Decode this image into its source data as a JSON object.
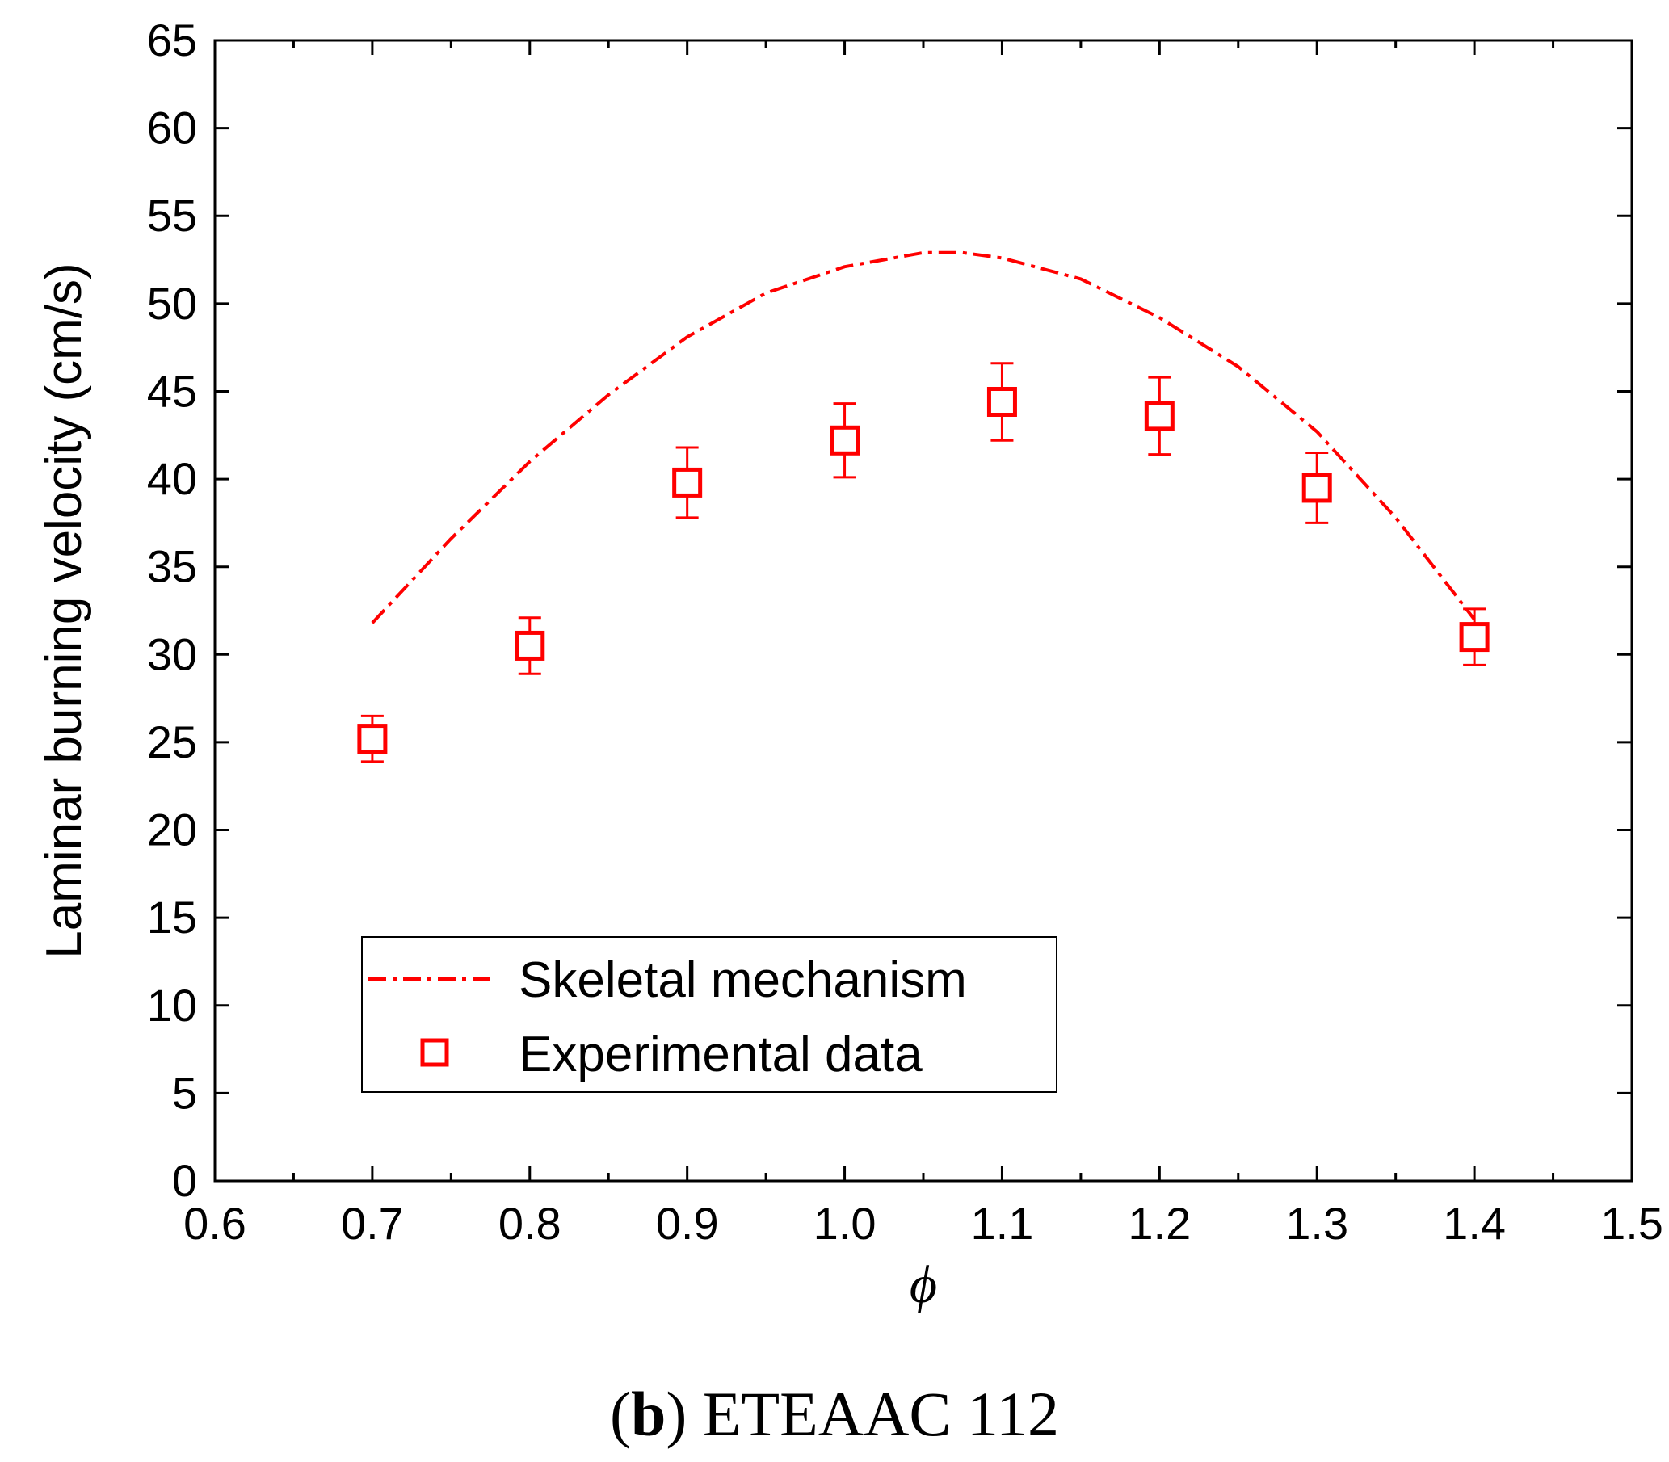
{
  "chart_data": {
    "type": "line",
    "title": "",
    "xlabel": "ϕ",
    "ylabel": "Laminar burning velocity (cm/s)",
    "xlim": [
      0.6,
      1.5
    ],
    "ylim": [
      0,
      65
    ],
    "x_ticks": [
      "0.6",
      "0.7",
      "0.8",
      "0.9",
      "1.0",
      "1.1",
      "1.2",
      "1.3",
      "1.4",
      "1.5"
    ],
    "y_ticks": [
      "0",
      "5",
      "10",
      "15",
      "20",
      "25",
      "30",
      "35",
      "40",
      "45",
      "50",
      "55",
      "60",
      "65"
    ],
    "grid": false,
    "legend_position": "bottom-left",
    "series": [
      {
        "name": "Skeletal mechanism",
        "kind": "line",
        "style": "dash-dot",
        "color": "#ff0000",
        "x": [
          0.7,
          0.75,
          0.8,
          0.85,
          0.9,
          0.95,
          1.0,
          1.05,
          1.075,
          1.1,
          1.15,
          1.2,
          1.25,
          1.3,
          1.35,
          1.4
        ],
        "y": [
          31.8,
          36.6,
          41.0,
          44.8,
          48.1,
          50.6,
          52.1,
          52.9,
          52.9,
          52.6,
          51.4,
          49.2,
          46.4,
          42.7,
          37.8,
          32.0
        ]
      },
      {
        "name": "Experimental data",
        "kind": "scatter",
        "marker": "open-square",
        "color": "#ff0000",
        "x": [
          0.7,
          0.8,
          0.9,
          1.0,
          1.1,
          1.2,
          1.3,
          1.4
        ],
        "y": [
          25.2,
          30.5,
          39.8,
          42.2,
          44.4,
          43.6,
          39.5,
          31.0
        ],
        "error": [
          1.3,
          1.6,
          2.0,
          2.1,
          2.2,
          2.2,
          2.0,
          1.6
        ]
      }
    ]
  },
  "caption": {
    "letter": "b",
    "text": " ETEAAC 112",
    "open_paren": "(",
    "close_paren": ")"
  }
}
